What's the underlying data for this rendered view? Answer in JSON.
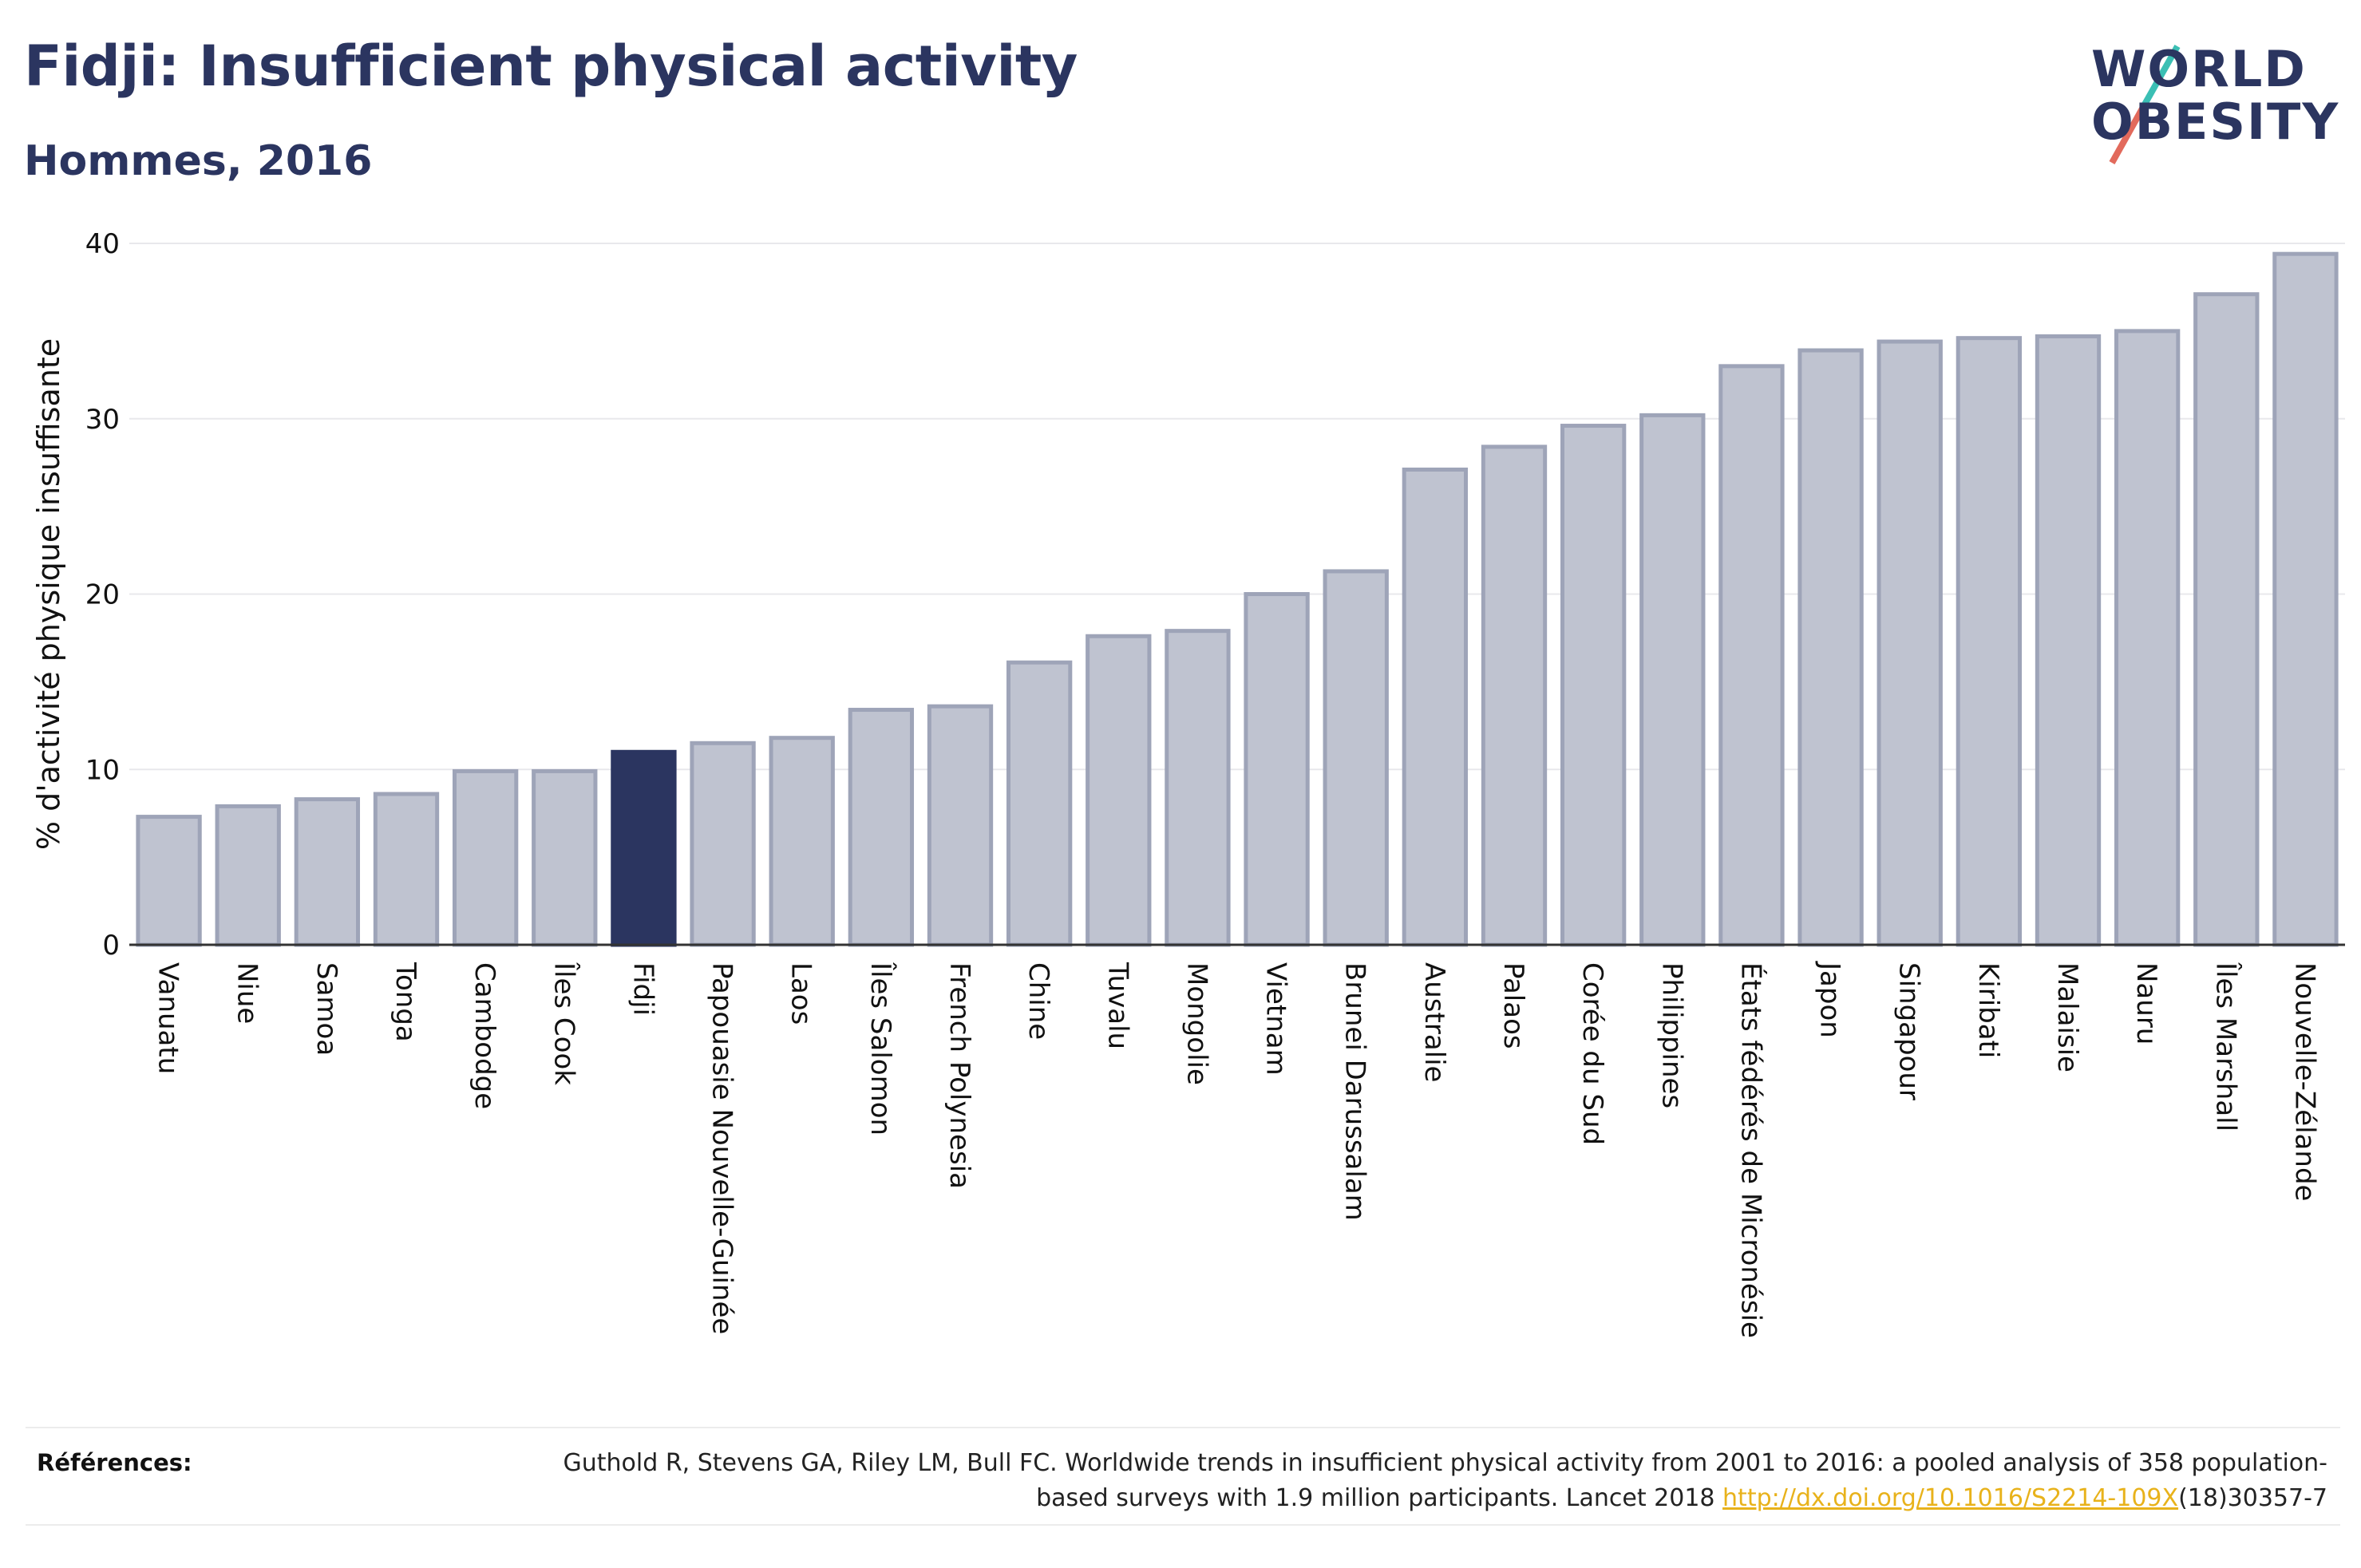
{
  "header": {
    "title": "Fidji: Insufficient physical activity",
    "subtitle": "Hommes, 2016"
  },
  "logo": {
    "line1": "WORLD",
    "line2": "OBESITY"
  },
  "chart_data": {
    "type": "bar",
    "ylabel": "% d'activité physique insuffisante",
    "ylim": [
      0,
      40
    ],
    "yticks": [
      0,
      10,
      20,
      30,
      40
    ],
    "grid": true,
    "highlight": "Fidji",
    "colors": {
      "bar": "#bfc3d0",
      "bar_edge": "#9ea4b8",
      "highlight": "#2b3560"
    },
    "categories": [
      "Vanuatu",
      "Niue",
      "Samoa",
      "Tonga",
      "Cambodge",
      "Îles Cook",
      "Fidji",
      "Papouasie Nouvelle-Guinée",
      "Laos",
      "Îles Salomon",
      "French Polynesia",
      "Chine",
      "Tuvalu",
      "Mongolie",
      "Vietnam",
      "Brunei Darussalam",
      "Australie",
      "Palaos",
      "Corée du Sud",
      "Philippines",
      "États fédérés de Micronésie",
      "Japon",
      "Singapour",
      "Kiribati",
      "Malaisie",
      "Nauru",
      "Îles Marshall",
      "Nouvelle-Zélande"
    ],
    "values": [
      7.3,
      7.9,
      8.3,
      8.6,
      9.9,
      9.9,
      11.0,
      11.5,
      11.8,
      13.4,
      13.6,
      16.1,
      17.6,
      17.9,
      20.0,
      21.3,
      27.1,
      28.4,
      29.6,
      30.2,
      33.0,
      33.9,
      34.4,
      34.6,
      34.7,
      35.0,
      37.1,
      39.4
    ]
  },
  "references": {
    "label": "Références:",
    "text_before": "Guthold R, Stevens GA, Riley LM, Bull FC. Worldwide trends in insufficient physical activity from 2001 to 2016: a pooled analysis of 358 population-based surveys with 1.9 million participants. Lancet 2018 ",
    "link": "http://dx.doi.org/10.1016/S2214-109X",
    "text_after": "(18)30357-7"
  }
}
